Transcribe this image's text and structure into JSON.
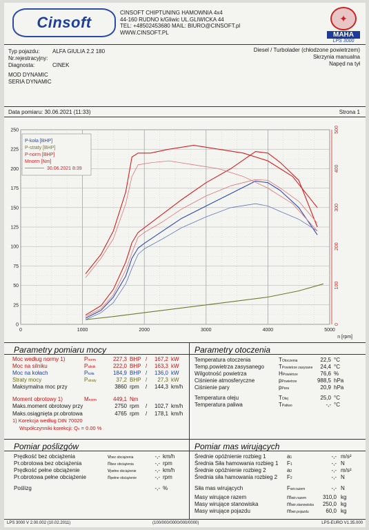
{
  "header": {
    "logo_text": "Cinsoft",
    "company_lines": [
      "CINSOFT CHIPTUNING HAMOWNIA 4x4",
      "44-160 RUDNO k/Gliwic UL.GLIWICKA 44",
      "TEL: +48502453680  MAIL: BIURO@CINSOFT.pl",
      "WWW.CINSOFT.PL"
    ],
    "maha_word": "MAHA",
    "maha_model": "LPS 3000"
  },
  "vehicle": {
    "type_label": "Typ pojazdu:",
    "type_value": "ALFA GIULIA 2.2 180",
    "reg_label": "Nr.rejestracyjny:",
    "reg_value": "",
    "diag_label": "Diagnosta:",
    "diag_value": "CINEK",
    "engine": "Diesel / Turbolader (chłodzone powietrzem)",
    "gearbox": "Skrzynia manualna",
    "drive": "Napęd na tył",
    "mod_line1": "MOD DYNAMIC",
    "mod_line2": "SERIA DYNAMIC",
    "date_text": "Data pomiaru: 30.06.2021 (11:33)",
    "page_text": "Strona 1"
  },
  "chart_data": {
    "type": "line",
    "x_unit_label": "n [rpm]",
    "xlim": [
      0,
      5000
    ],
    "ylim_left": [
      0,
      250
    ],
    "ylim_right": [
      0,
      500
    ],
    "x_ticks": [
      0,
      1000,
      2000,
      3000,
      4000,
      5000
    ],
    "y_ticks_left": [
      0,
      25,
      50,
      75,
      100,
      125,
      150,
      175,
      200,
      225,
      250
    ],
    "y_ticks_right": [
      0,
      100,
      200,
      300,
      400,
      500
    ],
    "legend": [
      "P-koła [BHP]",
      "P-straty [BHP]",
      "P-norm [BHP]",
      "Mnorm [Nm]",
      "30.06.2021 8:39"
    ],
    "colors": {
      "wheel": "#2a4bb0",
      "loss": "#6e7a2a",
      "norm": "#d61f1f",
      "torque": "#d61f1f",
      "wheel_ref": "#5f77c0",
      "norm_ref": "#e07575",
      "torque_ref": "#e07575"
    },
    "series": [
      {
        "name": "P-koła [BHP]",
        "axis": "left",
        "x": [
          1050,
          1300,
          1500,
          1700,
          1800,
          1900,
          2000,
          2300,
          2600,
          3000,
          3400,
          3800,
          4000,
          4200,
          4500,
          4800
        ],
        "y": [
          8,
          18,
          35,
          62,
          85,
          98,
          104,
          120,
          136,
          152,
          168,
          184,
          182,
          172,
          150,
          115
        ]
      },
      {
        "name": "P-straty [BHP]",
        "axis": "left",
        "x": [
          1050,
          1500,
          2000,
          2500,
          3000,
          3500,
          4000,
          4500,
          4900
        ],
        "y": [
          6,
          10,
          15,
          20,
          25,
          30,
          35,
          43,
          52
        ]
      },
      {
        "name": "P-norm [BHP]",
        "axis": "left",
        "x": [
          1050,
          1300,
          1500,
          1700,
          1800,
          1900,
          2000,
          2300,
          2600,
          3000,
          3400,
          3800,
          4000,
          4200,
          4500,
          4800
        ],
        "y": [
          12,
          24,
          45,
          80,
          105,
          118,
          124,
          142,
          160,
          182,
          200,
          222,
          220,
          208,
          185,
          125
        ]
      },
      {
        "name": "Mnorm [Nm]",
        "axis": "right",
        "x": [
          1050,
          1300,
          1500,
          1700,
          1800,
          1900,
          2100,
          2400,
          2800,
          3200,
          3600,
          4000,
          4400,
          4800
        ],
        "y": [
          130,
          180,
          240,
          340,
          430,
          440,
          440,
          450,
          460,
          450,
          440,
          420,
          380,
          300
        ]
      },
      {
        "name": "30.06.2021 8:39",
        "axis": "left",
        "x": [
          1050,
          1300,
          1500,
          1700,
          1800,
          1900,
          2000,
          2300,
          2600,
          3000,
          3400,
          3800,
          4000,
          4200,
          4500,
          4800
        ],
        "y": [
          6,
          15,
          28,
          52,
          72,
          90,
          97,
          110,
          124,
          138,
          150,
          155,
          152,
          145,
          135,
          120
        ]
      },
      {
        "name": "30.06.2021 8:39",
        "axis": "left",
        "x": [
          1050,
          1300,
          1500,
          1700,
          1800,
          1900,
          2000,
          2300,
          2600,
          3000,
          3400,
          3800,
          4000,
          4200,
          4500,
          4800
        ],
        "y": [
          10,
          20,
          38,
          70,
          92,
          112,
          118,
          132,
          148,
          165,
          178,
          186,
          185,
          175,
          158,
          130
        ]
      },
      {
        "name": "30.06.2021 8:39",
        "axis": "right",
        "x": [
          1050,
          1300,
          1500,
          1700,
          1800,
          1900,
          2100,
          2400,
          2800,
          3200,
          3600,
          4000,
          4400,
          4800
        ],
        "y": [
          120,
          170,
          220,
          310,
          380,
          410,
          415,
          420,
          410,
          400,
          380,
          350,
          310,
          240
        ]
      }
    ]
  },
  "measure": {
    "title": "Parametry pomiaru mocy",
    "rows": [
      {
        "label": "Moc według normy",
        "note": "1)",
        "sym": "P",
        "sub": "norm",
        "v1": "227,3",
        "u1": "BHP",
        "sep": "/",
        "v2": "167,2",
        "u2": "kW",
        "color": "red"
      },
      {
        "label": "Moc na silniku",
        "note": "",
        "sym": "P",
        "sub": "silnik",
        "v1": "222,0",
        "u1": "BHP",
        "sep": "/",
        "v2": "163,3",
        "u2": "kW",
        "color": "red"
      },
      {
        "label": "Moc na kołach",
        "note": "",
        "sym": "P",
        "sub": "koła",
        "v1": "184,9",
        "u1": "BHP",
        "sep": "/",
        "v2": "136,0",
        "u2": "kW",
        "color": "blue"
      },
      {
        "label": "Straty mocy",
        "note": "",
        "sym": "P",
        "sub": "straty",
        "v1": "37,2",
        "u1": "BHP",
        "sep": "/",
        "v2": "27,3",
        "u2": "kW",
        "color": "olive"
      },
      {
        "label": "Maksymalna moc przy",
        "note": "",
        "sym": "",
        "sub": "",
        "v1": "3860",
        "u1": "rpm",
        "sep": "/",
        "v2": "144,3",
        "u2": "km/h",
        "color": "dark"
      },
      {
        "label": "Moment obrotowy",
        "note": "1)",
        "sym": "M",
        "sub": "norm",
        "v1": "449,1",
        "u1": "Nm",
        "sep": "",
        "v2": "",
        "u2": "",
        "color": "red"
      },
      {
        "label": "Maks.moment obrotowy przy",
        "note": "",
        "sym": "",
        "sub": "",
        "v1": "2750",
        "u1": "rpm",
        "sep": "/",
        "v2": "102,7",
        "u2": "km/h",
        "color": "dark"
      },
      {
        "label": "Maks.osiągnięta pr.obrotowa",
        "note": "",
        "sym": "",
        "sub": "",
        "v1": "4765",
        "u1": "rpm",
        "sep": "/",
        "v2": "178,1",
        "u2": "km/h",
        "color": "dark"
      }
    ],
    "correction_line": "1) Korekcja według DIN 70020",
    "coeff_line": "Współczynniki korekcji: Q",
    "coeff_value": "0.00 %"
  },
  "ambient": {
    "title": "Parametry otoczenia",
    "rows": [
      {
        "label": "Temperatura otoczenia",
        "sym": "T",
        "sub": "Otoczenia",
        "val": "22,5",
        "unit": "°C"
      },
      {
        "label": "Temp.powietrza zasysanego",
        "sym": "T",
        "sub": "Powietrze zasysane",
        "val": "24,4",
        "unit": "°C"
      },
      {
        "label": "Wilgotność powietrza",
        "sym": "H",
        "sub": "Powietrze",
        "val": "76,6",
        "unit": "%"
      },
      {
        "label": "Ciśnienie atmosferyczne",
        "sym": "p",
        "sub": "Powietrze",
        "val": "988,5",
        "unit": "hPa"
      },
      {
        "label": "Ciśnienie pary",
        "sym": "p",
        "sub": "Para",
        "val": "20,9",
        "unit": "hPa"
      },
      {
        "label": "Temperatura oleju",
        "sym": "T",
        "sub": "Olej",
        "val": "25,0",
        "unit": "°C"
      },
      {
        "label": "Temperatura paliwa",
        "sym": "T",
        "sub": "Paliwo",
        "val": "-,-",
        "unit": "°C"
      }
    ]
  },
  "slip": {
    "title": "Pomiar poślizgów",
    "rows": [
      {
        "label": "Prędkość bez obciążenia",
        "sym": "v",
        "sub": "bez obciążenia",
        "val": "-,-",
        "unit": "km/h"
      },
      {
        "label": "Pr.obrotowa bez obciążenia",
        "sym": "n",
        "sub": "bez obciążenia",
        "val": "-,-",
        "unit": "rpm"
      },
      {
        "label": "Prędkość pełne obciążenie",
        "sym": "v",
        "sub": "pełne obciążenie",
        "val": "-,-",
        "unit": "km/h"
      },
      {
        "label": "Pr.obrotowa pełne obciążenie",
        "sym": "n",
        "sub": "pełne obciążenie",
        "val": "-,-",
        "unit": "rpm"
      },
      {
        "label": "Poślizg",
        "sym": "",
        "sub": "",
        "val": "-,-",
        "unit": "%"
      }
    ]
  },
  "mass": {
    "title": "Pomiar mas wirujących",
    "rows": [
      {
        "label": "Średnie opóźnienie rozbieg 1",
        "sym": "a",
        "sub": "1",
        "val": "-,-",
        "unit": "m/s²"
      },
      {
        "label": "Średnia Siła hamowania rozbieg 1",
        "sym": "F",
        "sub": "1",
        "val": "-,-",
        "unit": "N"
      },
      {
        "label": "Średnie opóźnienie rozbieg 2",
        "sym": "a",
        "sub": "2",
        "val": "-,-",
        "unit": "m/s²"
      },
      {
        "label": "Średnia siła hamowania rozbieg 2",
        "sym": "F",
        "sub": "2",
        "val": "-,-",
        "unit": "N"
      },
      {
        "label": "Siła mas wirujących",
        "sym": "F",
        "sub": "wir.razem",
        "val": "-,-",
        "unit": "N"
      },
      {
        "label": "Masy wirujące razem",
        "sym": "m",
        "sub": "wir.razem",
        "val": "310,0",
        "unit": "kg"
      },
      {
        "label": "Masy wirujące stanowiska",
        "sym": "m",
        "sub": "wir.stanowiska",
        "val": "250,0",
        "unit": "kg"
      },
      {
        "label": "Masy wirujące pojazdu",
        "sym": "m",
        "sub": "wir.pojazdu",
        "val": "60,0",
        "unit": "kg"
      }
    ]
  },
  "footer": {
    "left": "LPS 3000 V 2.00.002 (10.02.2011)",
    "center": "(100/000/0000/000/0000)",
    "right": "LPS-EURO V1.35.000"
  }
}
